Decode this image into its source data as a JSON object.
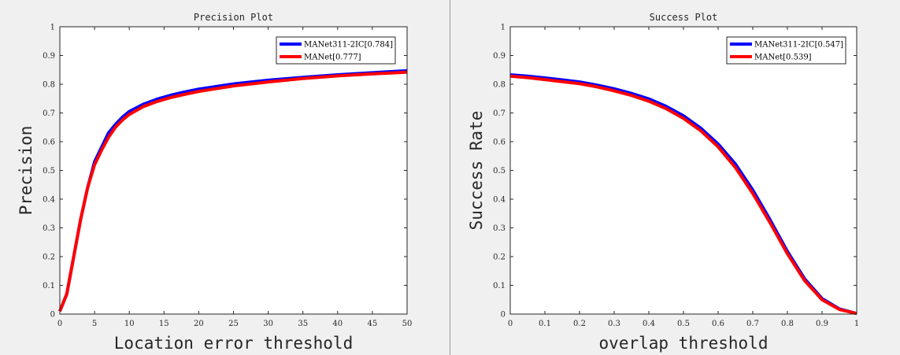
{
  "chart_data": [
    {
      "type": "line",
      "title": "Precision Plot",
      "xlabel": "Location error threshold",
      "ylabel": "Precision",
      "xlim": [
        0,
        50
      ],
      "ylim": [
        0,
        1
      ],
      "xticks": [
        0,
        5,
        10,
        15,
        20,
        25,
        30,
        35,
        40,
        45,
        50
      ],
      "yticks": [
        0,
        0.1,
        0.2,
        0.3,
        0.4,
        0.5,
        0.6,
        0.7,
        0.8,
        0.9,
        1
      ],
      "legend_position": "top-right",
      "grid": false,
      "series": [
        {
          "name": "MANet311-2IC[0.784]",
          "color": "#0000ff",
          "x": [
            0,
            1,
            2,
            3,
            4,
            5,
            6,
            7,
            8,
            9,
            10,
            12,
            14,
            16,
            18,
            20,
            25,
            30,
            35,
            40,
            45,
            50
          ],
          "y": [
            0.01,
            0.07,
            0.2,
            0.33,
            0.44,
            0.53,
            0.58,
            0.63,
            0.66,
            0.685,
            0.705,
            0.73,
            0.748,
            0.762,
            0.773,
            0.783,
            0.801,
            0.814,
            0.824,
            0.833,
            0.84,
            0.847
          ]
        },
        {
          "name": "MANet[0.777]",
          "color": "#ff0000",
          "x": [
            0,
            1,
            2,
            3,
            4,
            5,
            6,
            7,
            8,
            9,
            10,
            12,
            14,
            16,
            18,
            20,
            25,
            30,
            35,
            40,
            45,
            50
          ],
          "y": [
            0.01,
            0.07,
            0.2,
            0.33,
            0.44,
            0.52,
            0.57,
            0.615,
            0.65,
            0.675,
            0.695,
            0.722,
            0.74,
            0.754,
            0.765,
            0.775,
            0.794,
            0.808,
            0.82,
            0.829,
            0.836,
            0.842
          ]
        }
      ]
    },
    {
      "type": "line",
      "title": "Success Plot",
      "xlabel": "overlap threshold",
      "ylabel": "Success Rate",
      "xlim": [
        0,
        1
      ],
      "ylim": [
        0,
        1
      ],
      "xticks": [
        0,
        0.1,
        0.2,
        0.3,
        0.4,
        0.5,
        0.6,
        0.7,
        0.8,
        0.9,
        1
      ],
      "yticks": [
        0,
        0.1,
        0.2,
        0.3,
        0.4,
        0.5,
        0.6,
        0.7,
        0.8,
        0.9,
        1
      ],
      "legend_position": "top-right",
      "grid": false,
      "series": [
        {
          "name": "MANet311-2IC[0.547]",
          "color": "#0000ff",
          "x": [
            0,
            0.05,
            0.1,
            0.15,
            0.2,
            0.25,
            0.3,
            0.35,
            0.4,
            0.45,
            0.5,
            0.55,
            0.6,
            0.65,
            0.7,
            0.75,
            0.8,
            0.85,
            0.9,
            0.95,
            1
          ],
          "y": [
            0.833,
            0.828,
            0.822,
            0.815,
            0.808,
            0.797,
            0.784,
            0.768,
            0.749,
            0.723,
            0.69,
            0.647,
            0.592,
            0.522,
            0.432,
            0.328,
            0.218,
            0.122,
            0.054,
            0.018,
            0.002
          ]
        },
        {
          "name": "MANet[0.539]",
          "color": "#ff0000",
          "x": [
            0,
            0.05,
            0.1,
            0.15,
            0.2,
            0.25,
            0.3,
            0.35,
            0.4,
            0.45,
            0.5,
            0.55,
            0.6,
            0.65,
            0.7,
            0.75,
            0.8,
            0.85,
            0.9,
            0.95,
            1
          ],
          "y": [
            0.828,
            0.823,
            0.816,
            0.809,
            0.802,
            0.791,
            0.777,
            0.761,
            0.741,
            0.715,
            0.681,
            0.638,
            0.582,
            0.51,
            0.42,
            0.318,
            0.21,
            0.116,
            0.05,
            0.016,
            0.002
          ]
        }
      ]
    }
  ]
}
